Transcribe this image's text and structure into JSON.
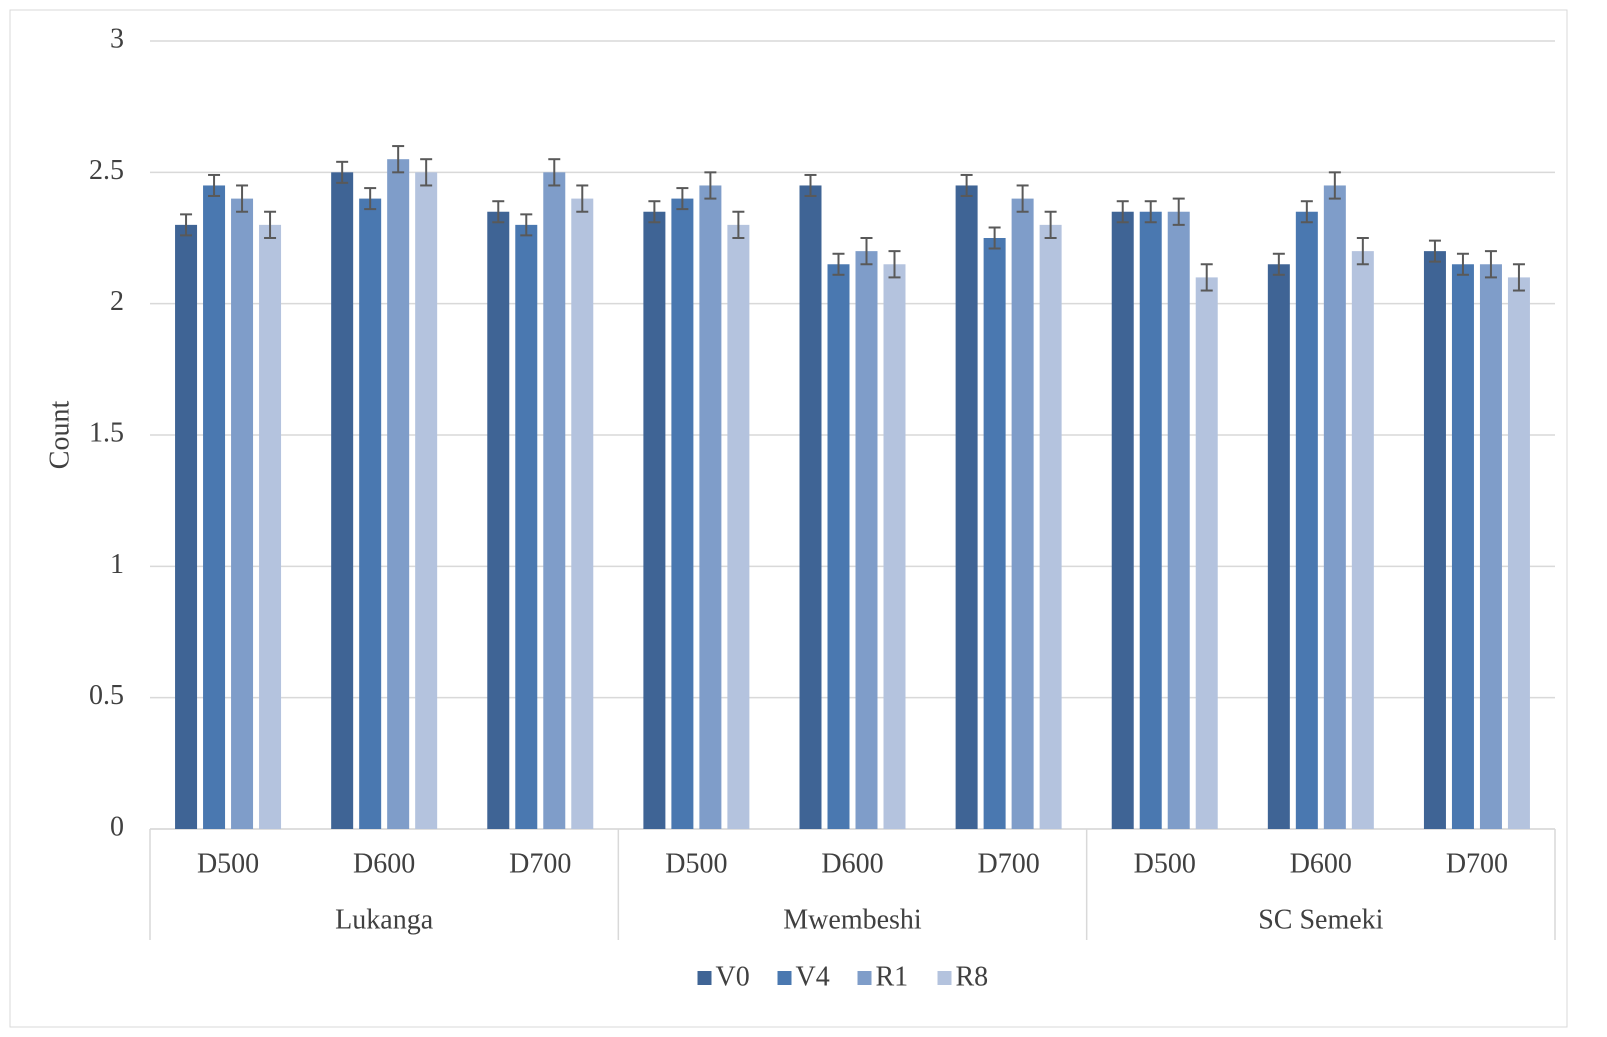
{
  "chart_data": {
    "type": "bar",
    "y_label": "Count",
    "categories": [
      "D500",
      "D600",
      "D700",
      "D500",
      "D600",
      "D700",
      "D500",
      "D600",
      "D700"
    ],
    "groups": [
      "Lukanga",
      "Mwembeshi",
      "SC Semeki"
    ],
    "series": [
      {
        "name": "V0",
        "color": "#3f6495",
        "values": [
          2.3,
          2.5,
          2.35,
          2.35,
          2.45,
          2.45,
          2.35,
          2.15,
          2.2
        ],
        "errors": [
          0.04,
          0.04,
          0.04,
          0.04,
          0.04,
          0.04,
          0.04,
          0.04,
          0.04
        ]
      },
      {
        "name": "V4",
        "color": "#4a78b0",
        "values": [
          2.45,
          2.4,
          2.3,
          2.4,
          2.15,
          2.25,
          2.35,
          2.35,
          2.15
        ],
        "errors": [
          0.04,
          0.04,
          0.04,
          0.04,
          0.04,
          0.04,
          0.04,
          0.04,
          0.04
        ]
      },
      {
        "name": "R1",
        "color": "#7f9dc9",
        "values": [
          2.4,
          2.55,
          2.5,
          2.45,
          2.2,
          2.4,
          2.35,
          2.45,
          2.15
        ],
        "errors": [
          0.05,
          0.05,
          0.05,
          0.05,
          0.05,
          0.05,
          0.05,
          0.05,
          0.05
        ]
      },
      {
        "name": "R8",
        "color": "#b4c3de",
        "values": [
          2.3,
          2.5,
          2.4,
          2.3,
          2.15,
          2.3,
          2.1,
          2.2,
          2.1
        ],
        "errors": [
          0.05,
          0.05,
          0.05,
          0.05,
          0.05,
          0.05,
          0.05,
          0.05,
          0.05
        ]
      }
    ],
    "ylim": [
      0,
      3
    ],
    "yticks": [
      0,
      0.5,
      1,
      1.5,
      2,
      2.5,
      3
    ],
    "grid": true,
    "legend": "bottom"
  }
}
